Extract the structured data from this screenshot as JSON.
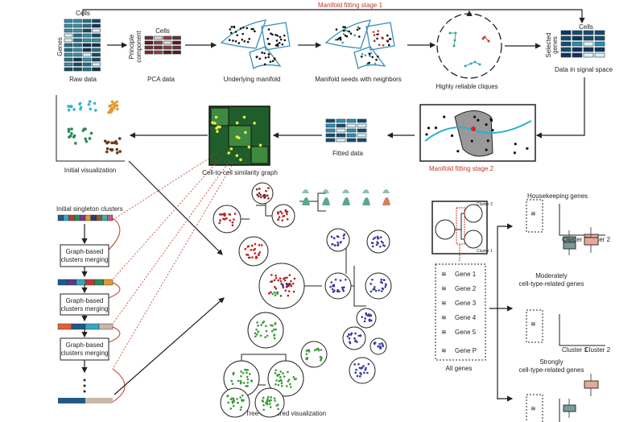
{
  "top": {
    "stage1_label": "Manifold fitting stage 1",
    "raw": {
      "cells": "Cells",
      "genes": "Genes",
      "label": "Raw data"
    },
    "pca": {
      "cells": "Cells",
      "pc": "Principle",
      "pc2": "component",
      "label": "PCA data"
    },
    "manifold_label": "Underlying manifold",
    "seeds_label": "Manifold seeds with neighbors",
    "cliques_label": "Highly reliable cliques",
    "signal": {
      "cells": "Cells",
      "genes1": "Selected",
      "genes2": "genes",
      "label": "Data in signal space"
    }
  },
  "middle": {
    "stage2_label": "Manifold fitting stage 2",
    "fitted_label": "Fitted data",
    "graph_label": "Cell-to-cell similarity graph",
    "initial_label": "Initial visualization"
  },
  "left": {
    "singleton_label": "Initial singleton clusters",
    "merge1": [
      "Graph-based",
      "clusters merging"
    ],
    "merge2": [
      "Graph-based",
      "clusters merging"
    ],
    "merge3": [
      "Graph-based",
      "clusters merging"
    ]
  },
  "tree_label": "Tree-structured visualization",
  "right": {
    "cluster2": "Cluster 2",
    "cluster1": "Cluster 1",
    "genes": [
      "Gene 1",
      "Gene 2",
      "Gene 3",
      "Gene 4",
      "Gene 5",
      "Gene P"
    ],
    "all_genes": "All genes",
    "housekeeping": "Housekeeping genes",
    "moderate1": "Moderately",
    "moderate2": "cell-type-related genes",
    "strong1": "Strongly",
    "strong2": "cell-type-related genes",
    "axis_c1": "Cluster 1",
    "axis_c2": "Cluster 2"
  },
  "colors": {
    "accent_red": "#c0392b",
    "teal": "#2b7f95",
    "graph_green": "#1f5e2a",
    "cluster_red": "#b22222",
    "cluster_blue": "#3a3aa0",
    "cluster_green": "#3a9a3a"
  }
}
